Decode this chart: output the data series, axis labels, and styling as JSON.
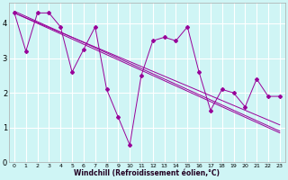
{
  "title": "",
  "xlabel": "Windchill (Refroidissement éolien,°C)",
  "bg_color": "#cff5f5",
  "grid_color": "#ffffff",
  "line_color": "#990099",
  "xlim": [
    -0.5,
    23.5
  ],
  "ylim": [
    0,
    4.6
  ],
  "xticks": [
    0,
    1,
    2,
    3,
    4,
    5,
    6,
    7,
    8,
    9,
    10,
    11,
    12,
    13,
    14,
    15,
    16,
    17,
    18,
    19,
    20,
    21,
    22,
    23
  ],
  "yticks": [
    0,
    1,
    2,
    3,
    4
  ],
  "jagged": [
    4.3,
    3.2,
    4.3,
    4.3,
    3.9,
    2.6,
    3.25,
    3.9,
    2.1,
    1.3,
    0.5,
    2.5,
    3.5,
    3.6,
    3.5,
    3.9,
    2.6,
    1.5,
    2.1,
    2.0,
    1.6,
    2.4,
    1.9,
    1.9
  ],
  "trend1": [
    4.3,
    4.15,
    4.0,
    3.85,
    3.7,
    3.55,
    3.4,
    3.25,
    3.1,
    2.95,
    2.8,
    2.65,
    2.5,
    2.35,
    2.2,
    2.05,
    1.9,
    1.75,
    1.6,
    1.45,
    1.3,
    1.15,
    1.0,
    0.85
  ],
  "trend2": [
    4.35,
    4.2,
    4.05,
    3.9,
    3.75,
    3.6,
    3.45,
    3.3,
    3.15,
    3.0,
    2.85,
    2.7,
    2.55,
    2.4,
    2.25,
    2.1,
    1.95,
    1.8,
    1.65,
    1.5,
    1.35,
    1.2,
    1.05,
    0.9
  ],
  "trend3": [
    4.3,
    4.16,
    4.02,
    3.88,
    3.74,
    3.6,
    3.46,
    3.32,
    3.18,
    3.04,
    2.9,
    2.76,
    2.62,
    2.48,
    2.34,
    2.2,
    2.06,
    1.92,
    1.78,
    1.64,
    1.5,
    1.36,
    1.22,
    1.08
  ],
  "xlabel_fontsize": 5.5,
  "tick_fontsize": 4.5,
  "ytick_fontsize": 6.0
}
